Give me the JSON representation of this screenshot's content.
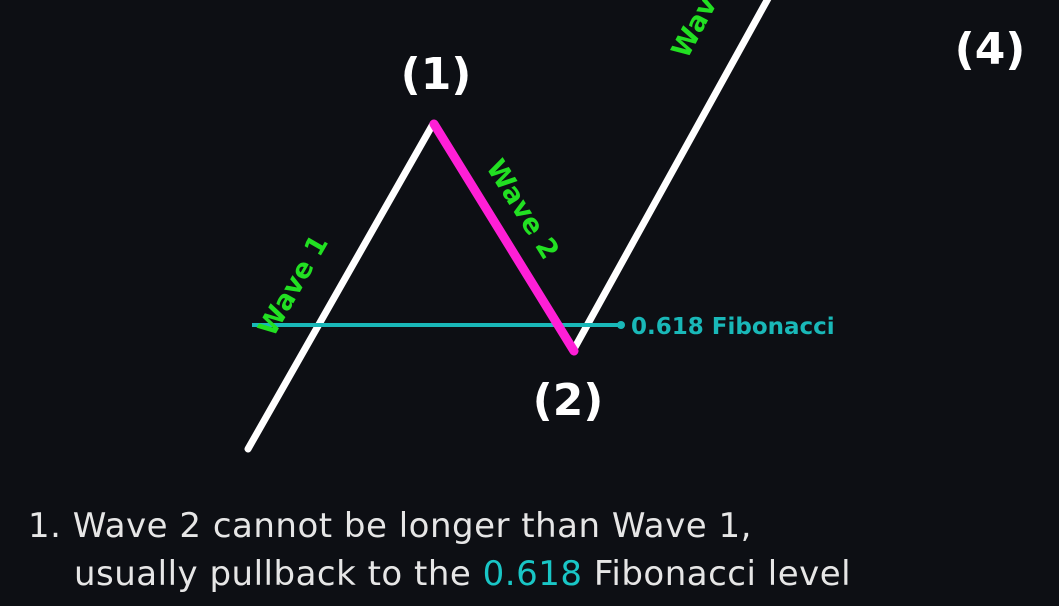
{
  "diagram": {
    "labels": {
      "point_1": "(1)",
      "point_2": "(2)",
      "point_4": "(4)",
      "wave_1": "Wave 1",
      "wave_2": "Wave 2",
      "wave_3": "Wave",
      "fib_level": "0.618 Fibonacci"
    },
    "colors": {
      "background": "#0d0f14",
      "wave_line": "#ffffff",
      "wave_2_line": "#ff1fd6",
      "wave_label": "#22e022",
      "fib_line": "#19b8b8",
      "point_label": "#ffffff"
    }
  },
  "rule": {
    "number": "1.",
    "line1": "Wave 2 cannot be longer than Wave 1,",
    "line2_before": "usually pullback to the",
    "line2_highlight": "0.618",
    "line2_after": "Fibonacci level"
  }
}
